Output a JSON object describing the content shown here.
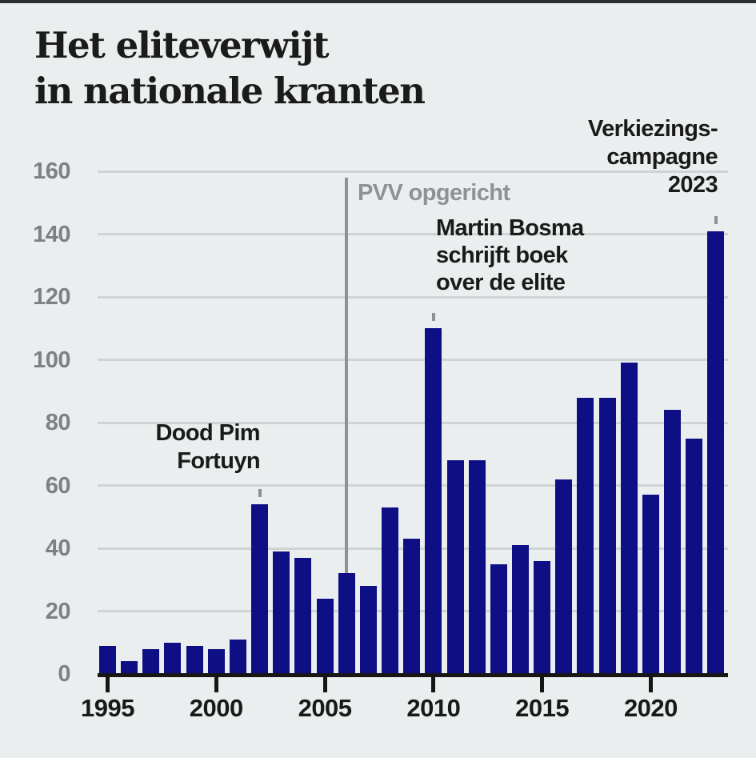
{
  "page": {
    "background": "#eaeeef",
    "top_bar_color": "#2c2f31"
  },
  "title": {
    "line1": "Het eliteverwijt",
    "line2": "in nationale kranten"
  },
  "chart_data": {
    "type": "bar",
    "title": "Het eliteverwijt in nationale kranten",
    "xlabel": "",
    "ylabel": "",
    "ylim": [
      0,
      160
    ],
    "yticks": [
      0,
      20,
      40,
      60,
      80,
      100,
      120,
      140,
      160
    ],
    "xticks": [
      1995,
      2000,
      2005,
      2010,
      2015,
      2020
    ],
    "grid": true,
    "legend": false,
    "bar_color": "#0f0f85",
    "categories": [
      1995,
      1996,
      1997,
      1998,
      1999,
      2000,
      2001,
      2002,
      2003,
      2004,
      2005,
      2006,
      2007,
      2008,
      2009,
      2010,
      2011,
      2012,
      2013,
      2014,
      2015,
      2016,
      2017,
      2018,
      2019,
      2020,
      2021,
      2022,
      2023
    ],
    "values": [
      9,
      4,
      8,
      10,
      9,
      8,
      11,
      54,
      39,
      37,
      24,
      32,
      28,
      53,
      43,
      110,
      68,
      68,
      35,
      41,
      36,
      62,
      88,
      88,
      99,
      57,
      84,
      75,
      141
    ],
    "annotations": [
      {
        "id": "dood-pim-fortuyn",
        "lines": [
          "Dood Pim",
          "Fortuyn"
        ],
        "year": 2002,
        "marker": "dash-above-bar",
        "align": "right",
        "color": "#1a1a1a"
      },
      {
        "id": "pvv-opgericht",
        "lines": [
          "PVV opgericht"
        ],
        "year": 2006,
        "marker": "vertical-line",
        "align": "left",
        "color": "#8d9294"
      },
      {
        "id": "martin-bosma-boek",
        "lines": [
          "Martin Bosma",
          "schrijft boek",
          "over de elite"
        ],
        "year": 2010,
        "marker": "dash-above-bar",
        "align": "left",
        "color": "#1a1a1a"
      },
      {
        "id": "verkiezingscampagne-2023",
        "lines": [
          "Verkiezings-",
          "campagne",
          "2023"
        ],
        "year": 2023,
        "marker": "dash-above-bar",
        "align": "right",
        "color": "#1a1a1a"
      }
    ],
    "colors": {
      "gridline": "#ced3d4",
      "axis": "#161616",
      "y_tick_label": "#7c8183",
      "x_tick_label": "#191919",
      "annotation_gray": "#8d9294"
    }
  }
}
